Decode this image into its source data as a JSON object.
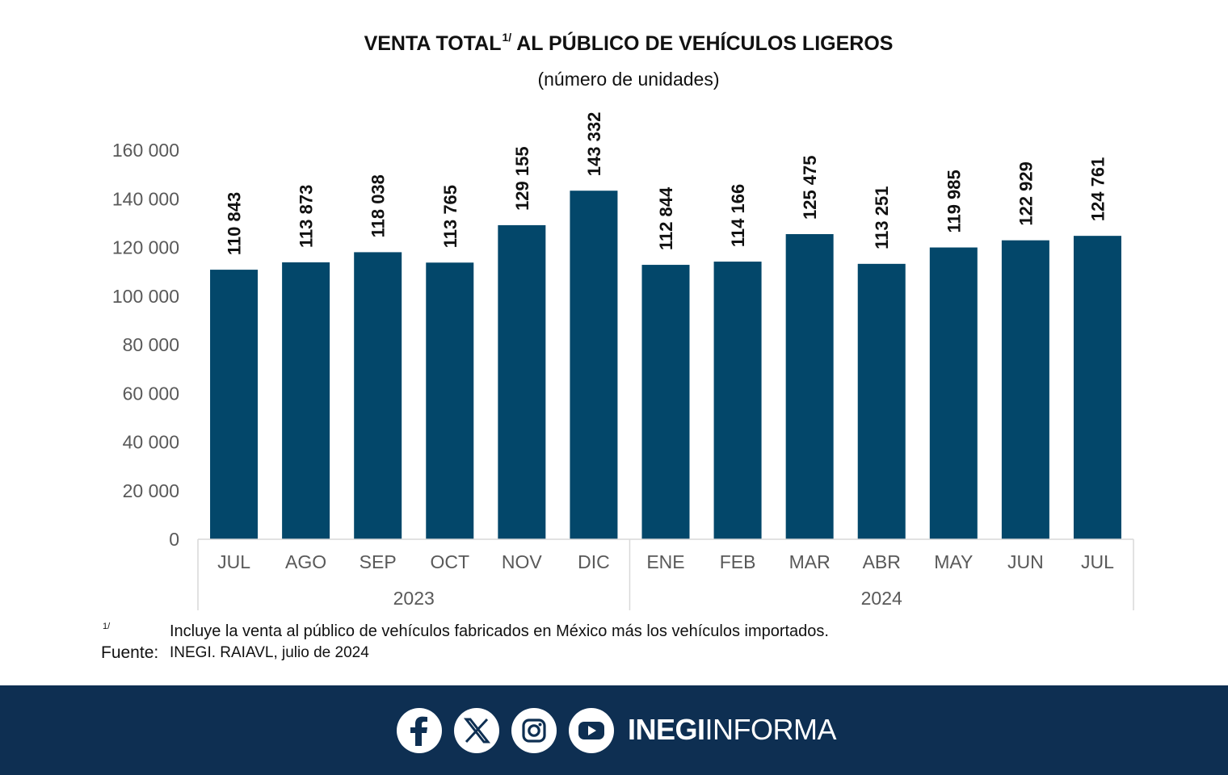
{
  "chart_data": {
    "type": "bar",
    "title": "VENTA TOTAL",
    "title_footnote_marker": "1/",
    "title_rest": "AL PÚBLICO DE VEHÍCULOS LIGEROS",
    "subtitle": "(número de unidades)",
    "categories": [
      "JUL",
      "AGO",
      "SEP",
      "OCT",
      "NOV",
      "DIC",
      "ENE",
      "FEB",
      "MAR",
      "ABR",
      "MAY",
      "JUN",
      "JUL"
    ],
    "year_groups": [
      {
        "label": "2023",
        "count": 6
      },
      {
        "label": "2024",
        "count": 7
      }
    ],
    "values": [
      110843,
      113873,
      118038,
      113765,
      129155,
      143332,
      112844,
      114166,
      125475,
      113251,
      119985,
      122929,
      124761
    ],
    "value_labels": [
      "110 843",
      "113 873",
      "118 038",
      "113 765",
      "129 155",
      "143 332",
      "112 844",
      "114 166",
      "125 475",
      "113 251",
      "119 985",
      "122 929",
      "124 761"
    ],
    "y_ticks": [
      0,
      20000,
      40000,
      60000,
      80000,
      100000,
      120000,
      140000,
      160000
    ],
    "y_tick_labels": [
      "0",
      "20 000",
      "40 000",
      "60 000",
      "80 000",
      "100 000",
      "120 000",
      "140 000",
      "160 000"
    ],
    "ylim": [
      0,
      160000
    ],
    "grid": false,
    "bar_color": "#03476a"
  },
  "notes": {
    "footnote_marker": "1/",
    "footnote_text": "Incluye la venta al público de vehículos fabricados en México más los vehículos importados.",
    "source_label": "Fuente:",
    "source_text": "INEGI. RAIAVL, julio de 2024"
  },
  "footer": {
    "background": "#0e2f52",
    "icons": [
      "facebook-icon",
      "x-icon",
      "instagram-icon",
      "youtube-icon"
    ],
    "brand_bold": "INEGI",
    "brand_light": "INFORMA"
  }
}
